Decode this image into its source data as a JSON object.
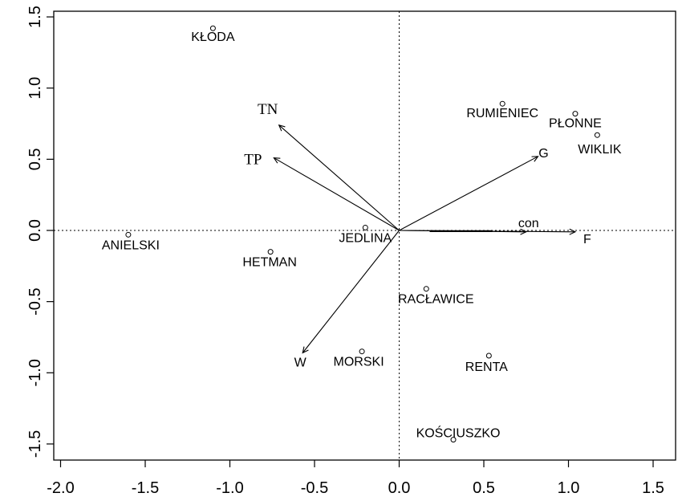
{
  "chart_data": {
    "type": "scatter",
    "subtype": "biplot",
    "title": "",
    "xlabel": "",
    "ylabel": "",
    "xlim": [
      -2.0,
      1.6
    ],
    "ylim": [
      -1.5,
      1.5
    ],
    "x_ticks": [
      -2.0,
      -1.5,
      -1.0,
      -0.5,
      0.0,
      0.5,
      1.0,
      1.5
    ],
    "x_tick_labels": [
      "-2.0",
      "-1.5",
      "-1.0",
      "-0.5",
      "0.0",
      "0.5",
      "1.0",
      "1.5"
    ],
    "y_ticks": [
      -1.5,
      -1.0,
      -0.5,
      0.0,
      0.5,
      1.0,
      1.5
    ],
    "y_tick_labels": [
      "-1.5",
      "-1.0",
      "-0.5",
      "0.0",
      "0.5",
      "1.0",
      "1.5"
    ],
    "grid": false,
    "reference_lines": {
      "x": 0,
      "y": 0,
      "style": "dotted"
    },
    "points": [
      {
        "label": "KŁODA",
        "x": -1.1,
        "y": 1.42
      },
      {
        "label": "ANIELSKI",
        "x": -1.6,
        "y": -0.03
      },
      {
        "label": "HETMAN",
        "x": -0.76,
        "y": -0.15
      },
      {
        "label": "JEDLINA",
        "x": -0.2,
        "y": 0.02
      },
      {
        "label": "RUMIENIEC",
        "x": 0.61,
        "y": 0.89
      },
      {
        "label": "PŁONNE",
        "x": 1.04,
        "y": 0.82
      },
      {
        "label": "WIKLIK",
        "x": 1.17,
        "y": 0.67
      },
      {
        "label": "RACŁAWICE",
        "x": 0.16,
        "y": -0.41
      },
      {
        "label": "MORSKI",
        "x": -0.22,
        "y": -0.85
      },
      {
        "label": "RENTA",
        "x": 0.53,
        "y": -0.88
      },
      {
        "label": "KOŚCIUSZKO",
        "x": 0.32,
        "y": -1.47
      }
    ],
    "vectors": [
      {
        "label": "TN",
        "x": -0.71,
        "y": 0.74
      },
      {
        "label": "TP",
        "x": -0.74,
        "y": 0.51
      },
      {
        "label": "G",
        "x": 0.82,
        "y": 0.52
      },
      {
        "label": "con",
        "x": 0.75,
        "y": -0.01
      },
      {
        "label": "F",
        "x": 1.04,
        "y": -0.01
      },
      {
        "label": "W",
        "x": -0.57,
        "y": -0.86
      }
    ]
  }
}
